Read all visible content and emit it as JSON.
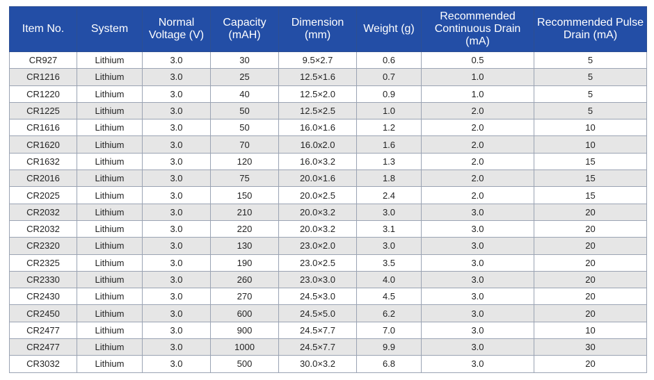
{
  "table": {
    "headers": [
      "Item No.",
      "System",
      "Normal Voltage (V)",
      "Capacity (mAH)",
      "Dimension (mm)",
      "Weight (g)",
      "Recommended Continuous Drain (mA)",
      "Recommended Pulse Drain (mA)"
    ],
    "rows": [
      [
        "CR927",
        "Lithium",
        "3.0",
        "30",
        "9.5×2.7",
        "0.6",
        "0.5",
        "5"
      ],
      [
        "CR1216",
        "Lithium",
        "3.0",
        "25",
        "12.5×1.6",
        "0.7",
        "1.0",
        "5"
      ],
      [
        "CR1220",
        "Lithium",
        "3.0",
        "40",
        "12.5×2.0",
        "0.9",
        "1.0",
        "5"
      ],
      [
        "CR1225",
        "Lithium",
        "3.0",
        "50",
        "12.5×2.5",
        "1.0",
        "2.0",
        "5"
      ],
      [
        "CR1616",
        "Lithium",
        "3.0",
        "50",
        "16.0×1.6",
        "1.2",
        "2.0",
        "10"
      ],
      [
        "CR1620",
        "Lithium",
        "3.0",
        "70",
        "16.0x2.0",
        "1.6",
        "2.0",
        "10"
      ],
      [
        "CR1632",
        "Lithium",
        "3.0",
        "120",
        "16.0×3.2",
        "1.3",
        "2.0",
        "15"
      ],
      [
        "CR2016",
        "Lithium",
        "3.0",
        "75",
        "20.0×1.6",
        "1.8",
        "2.0",
        "15"
      ],
      [
        "CR2025",
        "Lithium",
        "3.0",
        "150",
        "20.0×2.5",
        "2.4",
        "2.0",
        "15"
      ],
      [
        "CR2032",
        "Lithium",
        "3.0",
        "210",
        "20.0×3.2",
        "3.0",
        "3.0",
        "20"
      ],
      [
        "CR2032",
        "Lithium",
        "3.0",
        "220",
        "20.0×3.2",
        "3.1",
        "3.0",
        "20"
      ],
      [
        "CR2320",
        "Lithium",
        "3.0",
        "130",
        "23.0×2.0",
        "3.0",
        "3.0",
        "20"
      ],
      [
        "CR2325",
        "Lithium",
        "3.0",
        "190",
        "23.0×2.5",
        "3.5",
        "3.0",
        "20"
      ],
      [
        "CR2330",
        "Lithium",
        "3.0",
        "260",
        "23.0×3.0",
        "4.0",
        "3.0",
        "20"
      ],
      [
        "CR2430",
        "Lithium",
        "3.0",
        "270",
        "24.5×3.0",
        "4.5",
        "3.0",
        "20"
      ],
      [
        "CR2450",
        "Lithium",
        "3.0",
        "600",
        "24.5×5.0",
        "6.2",
        "3.0",
        "20"
      ],
      [
        "CR2477",
        "Lithium",
        "3.0",
        "900",
        "24.5×7.7",
        "7.0",
        "3.0",
        "10"
      ],
      [
        "CR2477",
        "Lithium",
        "3.0",
        "1000",
        "24.5×7.7",
        "9.9",
        "3.0",
        "30"
      ],
      [
        "CR3032",
        "Lithium",
        "3.0",
        "500",
        "30.0×3.2",
        "6.8",
        "3.0",
        "20"
      ]
    ]
  }
}
